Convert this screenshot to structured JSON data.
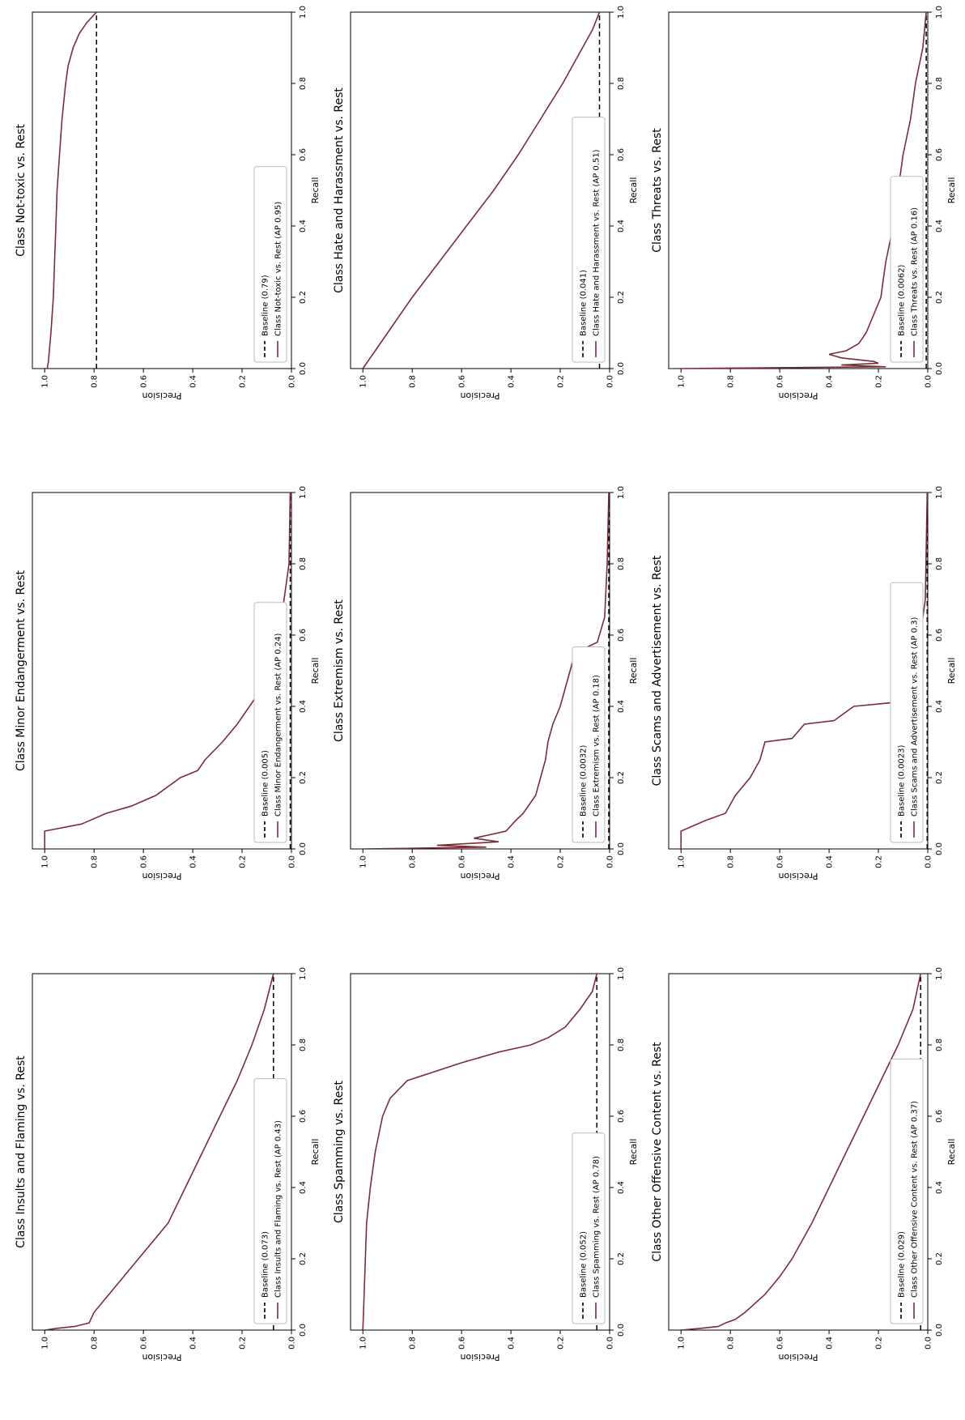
{
  "figure": {
    "orientation": "rotated-90-clockwise",
    "layout": "3x3 grid"
  },
  "chart_data": [
    {
      "type": "line",
      "title": "Class Not-toxic vs. Rest",
      "xlabel": "Recall",
      "ylabel": "Precision",
      "xlim": [
        0,
        1
      ],
      "ylim": [
        0,
        1.05
      ],
      "xticks": [
        "0.0",
        "0.2",
        "0.4",
        "0.6",
        "0.8",
        "1.0"
      ],
      "yticks": [
        "0.0",
        "0.2",
        "0.4",
        "0.6",
        "0.8",
        "1.0"
      ],
      "legend_position": "lower-left",
      "series": [
        {
          "name": "Baseline (0.79)",
          "style": "dashed",
          "color": "#000000",
          "x": [
            0,
            1
          ],
          "y": [
            0.79,
            0.79
          ]
        },
        {
          "name": "Class Not-toxic vs. Rest (AP 0.95)",
          "style": "solid",
          "color": "#7b2d35",
          "x": [
            0,
            0.02,
            0.1,
            0.2,
            0.3,
            0.4,
            0.5,
            0.6,
            0.7,
            0.8,
            0.85,
            0.9,
            0.94,
            0.97,
            1.0
          ],
          "y": [
            0.99,
            0.985,
            0.975,
            0.965,
            0.96,
            0.955,
            0.95,
            0.94,
            0.93,
            0.915,
            0.905,
            0.885,
            0.86,
            0.83,
            0.79
          ]
        }
      ]
    },
    {
      "type": "line",
      "title": "Class Hate and Harassment vs. Rest",
      "xlabel": "Recall",
      "ylabel": "Precision",
      "xlim": [
        0,
        1
      ],
      "ylim": [
        0,
        1.05
      ],
      "xticks": [
        "0.0",
        "0.2",
        "0.4",
        "0.6",
        "0.8",
        "1.0"
      ],
      "yticks": [
        "0.0",
        "0.2",
        "0.4",
        "0.6",
        "0.8",
        "1.0"
      ],
      "legend_position": "lower-left",
      "series": [
        {
          "name": "Baseline (0.041)",
          "style": "dashed",
          "color": "#000000",
          "x": [
            0,
            1
          ],
          "y": [
            0.041,
            0.041
          ]
        },
        {
          "name": "Class Hate and Harassment vs. Rest (AP 0.51)",
          "style": "solid",
          "color": "#7b2d35",
          "x": [
            0,
            0.02,
            0.05,
            0.1,
            0.2,
            0.3,
            0.4,
            0.5,
            0.6,
            0.7,
            0.8,
            0.9,
            0.95,
            1.0
          ],
          "y": [
            1.0,
            0.98,
            0.95,
            0.9,
            0.8,
            0.69,
            0.58,
            0.47,
            0.37,
            0.28,
            0.19,
            0.11,
            0.07,
            0.041
          ]
        }
      ]
    },
    {
      "type": "line",
      "title": "Class Threats vs. Rest",
      "xlabel": "Recall",
      "ylabel": "Precision",
      "xlim": [
        0,
        1
      ],
      "ylim": [
        0,
        1.05
      ],
      "xticks": [
        "0.0",
        "0.2",
        "0.4",
        "0.6",
        "0.8",
        "1.0"
      ],
      "yticks": [
        "0.0",
        "0.2",
        "0.4",
        "0.6",
        "0.8",
        "1.0"
      ],
      "legend_position": "lower-left",
      "series": [
        {
          "name": "Baseline (0.0062)",
          "style": "dashed",
          "color": "#000000",
          "x": [
            0,
            1
          ],
          "y": [
            0.0062,
            0.0062
          ]
        },
        {
          "name": "Class Threats vs. Rest (AP 0.16)",
          "style": "solid",
          "color": "#7b2d35",
          "x": [
            0,
            0.005,
            0.01,
            0.015,
            0.02,
            0.03,
            0.04,
            0.05,
            0.07,
            0.1,
            0.15,
            0.2,
            0.25,
            0.3,
            0.4,
            0.5,
            0.6,
            0.7,
            0.8,
            0.9,
            1.0
          ],
          "y": [
            1.0,
            0.17,
            0.35,
            0.2,
            0.22,
            0.35,
            0.4,
            0.33,
            0.28,
            0.25,
            0.22,
            0.19,
            0.18,
            0.17,
            0.14,
            0.12,
            0.1,
            0.07,
            0.05,
            0.02,
            0.0062
          ]
        }
      ]
    },
    {
      "type": "line",
      "title": "Class Minor Endangerment vs. Rest",
      "xlabel": "Recall",
      "ylabel": "Precision",
      "xlim": [
        0,
        1
      ],
      "ylim": [
        0,
        1.05
      ],
      "xticks": [
        "0.0",
        "0.2",
        "0.4",
        "0.6",
        "0.8",
        "1.0"
      ],
      "yticks": [
        "0.0",
        "0.2",
        "0.4",
        "0.6",
        "0.8",
        "1.0"
      ],
      "legend_position": "lower-left",
      "series": [
        {
          "name": "Baseline (0.005)",
          "style": "dashed",
          "color": "#000000",
          "x": [
            0,
            1
          ],
          "y": [
            0.005,
            0.005
          ]
        },
        {
          "name": "Class Minor Endangerment vs. Rest (AP 0.24)",
          "style": "solid",
          "color": "#7b2d35",
          "x": [
            0,
            0.05,
            0.07,
            0.1,
            0.12,
            0.15,
            0.2,
            0.22,
            0.25,
            0.3,
            0.35,
            0.4,
            0.45,
            0.5,
            0.55,
            0.6,
            0.7,
            0.8,
            1.0
          ],
          "y": [
            1.0,
            1.0,
            0.85,
            0.75,
            0.65,
            0.55,
            0.45,
            0.38,
            0.35,
            0.28,
            0.22,
            0.17,
            0.12,
            0.09,
            0.07,
            0.05,
            0.03,
            0.01,
            0.005
          ]
        }
      ]
    },
    {
      "type": "line",
      "title": "Class Extremism vs. Rest",
      "xlabel": "Recall",
      "ylabel": "Precision",
      "xlim": [
        0,
        1
      ],
      "ylim": [
        0,
        1.05
      ],
      "xticks": [
        "0.0",
        "0.2",
        "0.4",
        "0.6",
        "0.8",
        "1.0"
      ],
      "yticks": [
        "0.0",
        "0.2",
        "0.4",
        "0.6",
        "0.8",
        "1.0"
      ],
      "legend_position": "lower-left",
      "series": [
        {
          "name": "Baseline (0.0032)",
          "style": "dashed",
          "color": "#000000",
          "x": [
            0,
            1
          ],
          "y": [
            0.0032,
            0.0032
          ]
        },
        {
          "name": "Class Extremism vs. Rest (AP 0.18)",
          "style": "solid",
          "color": "#7b2d35",
          "x": [
            0,
            0.005,
            0.01,
            0.02,
            0.03,
            0.05,
            0.08,
            0.1,
            0.15,
            0.2,
            0.25,
            0.3,
            0.35,
            0.4,
            0.45,
            0.5,
            0.55,
            0.58,
            0.65,
            0.8,
            1.0
          ],
          "y": [
            1.0,
            0.5,
            0.7,
            0.45,
            0.55,
            0.42,
            0.38,
            0.35,
            0.3,
            0.28,
            0.26,
            0.25,
            0.23,
            0.2,
            0.18,
            0.16,
            0.14,
            0.05,
            0.02,
            0.01,
            0.0032
          ]
        }
      ]
    },
    {
      "type": "line",
      "title": "Class Scams and Advertisement vs. Rest",
      "xlabel": "Recall",
      "ylabel": "Precision",
      "xlim": [
        0,
        1
      ],
      "ylim": [
        0,
        1.05
      ],
      "xticks": [
        "0.0",
        "0.2",
        "0.4",
        "0.6",
        "0.8",
        "1.0"
      ],
      "yticks": [
        "0.0",
        "0.2",
        "0.4",
        "0.6",
        "0.8",
        "1.0"
      ],
      "legend_position": "lower-left",
      "series": [
        {
          "name": "Baseline (0.0023)",
          "style": "dashed",
          "color": "#000000",
          "x": [
            0,
            1
          ],
          "y": [
            0.0023,
            0.0023
          ]
        },
        {
          "name": "Class Scams and Advertisement vs. Rest (AP 0.3)",
          "style": "solid",
          "color": "#7b2d35",
          "x": [
            0,
            0.05,
            0.08,
            0.1,
            0.15,
            0.2,
            0.25,
            0.3,
            0.31,
            0.35,
            0.36,
            0.4,
            0.41,
            0.5,
            0.7,
            1.0
          ],
          "y": [
            1.0,
            1.0,
            0.9,
            0.82,
            0.78,
            0.72,
            0.68,
            0.66,
            0.55,
            0.5,
            0.38,
            0.3,
            0.15,
            0.05,
            0.01,
            0.0023
          ]
        }
      ]
    },
    {
      "type": "line",
      "title": "Class Insults and Flaming vs. Rest",
      "xlabel": "Recall",
      "ylabel": "Precision",
      "xlim": [
        0,
        1
      ],
      "ylim": [
        0,
        1.05
      ],
      "xticks": [
        "0.0",
        "0.2",
        "0.4",
        "0.6",
        "0.8",
        "1.0"
      ],
      "yticks": [
        "0.0",
        "0.2",
        "0.4",
        "0.6",
        "0.8",
        "1.0"
      ],
      "legend_position": "lower-left",
      "series": [
        {
          "name": "Baseline (0.073)",
          "style": "dashed",
          "color": "#000000",
          "x": [
            0,
            1
          ],
          "y": [
            0.073,
            0.073
          ]
        },
        {
          "name": "Class Insults and Flaming vs. Rest (AP 0.43)",
          "style": "solid",
          "color": "#7b2d35",
          "x": [
            0,
            0.005,
            0.01,
            0.02,
            0.05,
            0.1,
            0.15,
            0.2,
            0.3,
            0.4,
            0.5,
            0.6,
            0.7,
            0.8,
            0.9,
            1.0
          ],
          "y": [
            1.0,
            0.95,
            0.88,
            0.82,
            0.8,
            0.74,
            0.68,
            0.62,
            0.5,
            0.43,
            0.36,
            0.29,
            0.22,
            0.16,
            0.11,
            0.073
          ]
        }
      ]
    },
    {
      "type": "line",
      "title": "Class Spamming vs. Rest",
      "xlabel": "Recall",
      "ylabel": "Precision",
      "xlim": [
        0,
        1
      ],
      "ylim": [
        0,
        1.05
      ],
      "xticks": [
        "0.0",
        "0.2",
        "0.4",
        "0.6",
        "0.8",
        "1.0"
      ],
      "yticks": [
        "0.0",
        "0.2",
        "0.4",
        "0.6",
        "0.8",
        "1.0"
      ],
      "legend_position": "lower-left",
      "series": [
        {
          "name": "Baseline (0.052)",
          "style": "dashed",
          "color": "#000000",
          "x": [
            0,
            1
          ],
          "y": [
            0.052,
            0.052
          ]
        },
        {
          "name": "Class Spamming vs. Rest (AP 0.78)",
          "style": "solid",
          "color": "#7b2d35",
          "x": [
            0,
            0.1,
            0.2,
            0.3,
            0.4,
            0.5,
            0.6,
            0.65,
            0.7,
            0.75,
            0.78,
            0.8,
            0.82,
            0.85,
            0.9,
            0.95,
            1.0
          ],
          "y": [
            1.0,
            0.995,
            0.99,
            0.985,
            0.97,
            0.95,
            0.92,
            0.89,
            0.82,
            0.6,
            0.45,
            0.32,
            0.25,
            0.18,
            0.12,
            0.07,
            0.052
          ]
        }
      ]
    },
    {
      "type": "line",
      "title": "Class Other Offensive Content vs. Rest",
      "xlabel": "Recall",
      "ylabel": "Precision",
      "xlim": [
        0,
        1
      ],
      "ylim": [
        0,
        1.05
      ],
      "xticks": [
        "0.0",
        "0.2",
        "0.4",
        "0.6",
        "0.8",
        "1.0"
      ],
      "yticks": [
        "0.0",
        "0.2",
        "0.4",
        "0.6",
        "0.8",
        "1.0"
      ],
      "legend_position": "lower-left",
      "series": [
        {
          "name": "Baseline (0.029)",
          "style": "dashed",
          "color": "#000000",
          "x": [
            0,
            1
          ],
          "y": [
            0.029,
            0.029
          ]
        },
        {
          "name": "Class Other Offensive Content vs. Rest (AP 0.37)",
          "style": "solid",
          "color": "#7b2d35",
          "x": [
            0,
            0.005,
            0.01,
            0.02,
            0.03,
            0.05,
            0.1,
            0.15,
            0.2,
            0.3,
            0.4,
            0.5,
            0.6,
            0.7,
            0.8,
            0.9,
            1.0
          ],
          "y": [
            1.0,
            0.92,
            0.85,
            0.82,
            0.78,
            0.74,
            0.66,
            0.6,
            0.55,
            0.47,
            0.4,
            0.33,
            0.26,
            0.19,
            0.12,
            0.06,
            0.029
          ]
        }
      ]
    }
  ]
}
